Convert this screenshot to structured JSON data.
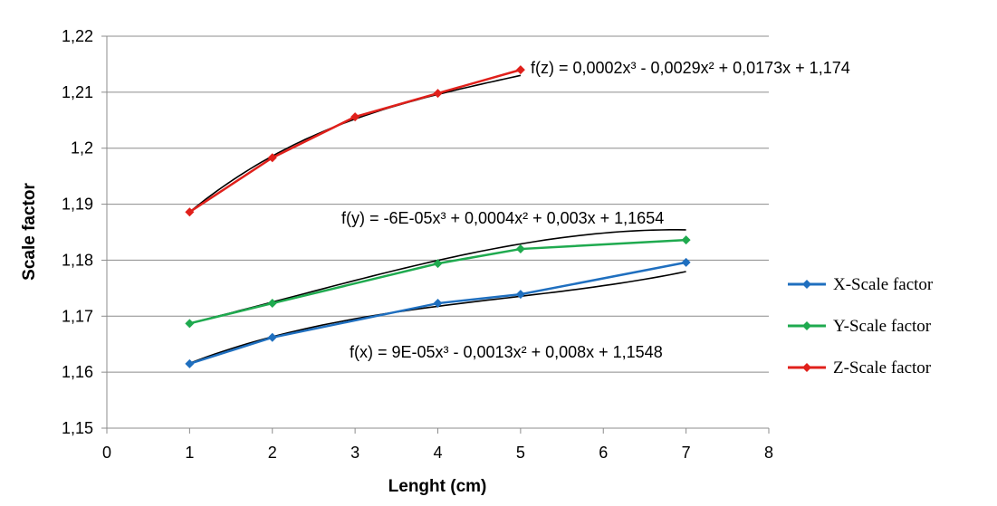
{
  "chart_data": {
    "type": "line",
    "title": "",
    "xlabel": "Lenght (cm)",
    "ylabel": "Scale factor",
    "xlim": [
      0,
      8
    ],
    "ylim": [
      1.15,
      1.22
    ],
    "xticks": [
      "0",
      "1",
      "2",
      "3",
      "4",
      "5",
      "6",
      "7",
      "8"
    ],
    "yticks": [
      "1,15",
      "1,16",
      "1,17",
      "1,18",
      "1,19",
      "1,2",
      "1,21",
      "1,22"
    ],
    "grid": "horizontal",
    "legend_position": "right",
    "series": [
      {
        "name": "X-Scale factor",
        "color": "#1f6fbf",
        "x": [
          1,
          2,
          4,
          5,
          7
        ],
        "y": [
          1.1615,
          1.1662,
          1.1723,
          1.1739,
          1.1796
        ],
        "trendline": {
          "coefficients": [
            9e-05,
            -0.0013,
            0.008,
            1.1548
          ],
          "label": "f(x) = 9E-05x³ - 0,0013x² + 0,008x + 1,1548"
        }
      },
      {
        "name": "Y-Scale factor",
        "color": "#1faa4f",
        "x": [
          1,
          2,
          4,
          5,
          7
        ],
        "y": [
          1.1687,
          1.1723,
          1.1794,
          1.182,
          1.1836
        ],
        "trendline": {
          "coefficients": [
            -6e-05,
            0.0004,
            0.003,
            1.1654
          ],
          "label": "f(y) = -6E-05x³ + 0,0004x² + 0,003x + 1,1654"
        }
      },
      {
        "name": "Z-Scale factor",
        "color": "#e0201b",
        "x": [
          1,
          2,
          3,
          4,
          5
        ],
        "y": [
          1.1886,
          1.1983,
          1.2056,
          1.2098,
          1.214
        ],
        "trendline": {
          "coefficients": [
            0.0002,
            -0.0029,
            0.0173,
            1.174
          ],
          "label": "f(z) = 0,0002x³ - 0,0029x² + 0,0173x + 1,174"
        }
      }
    ]
  }
}
